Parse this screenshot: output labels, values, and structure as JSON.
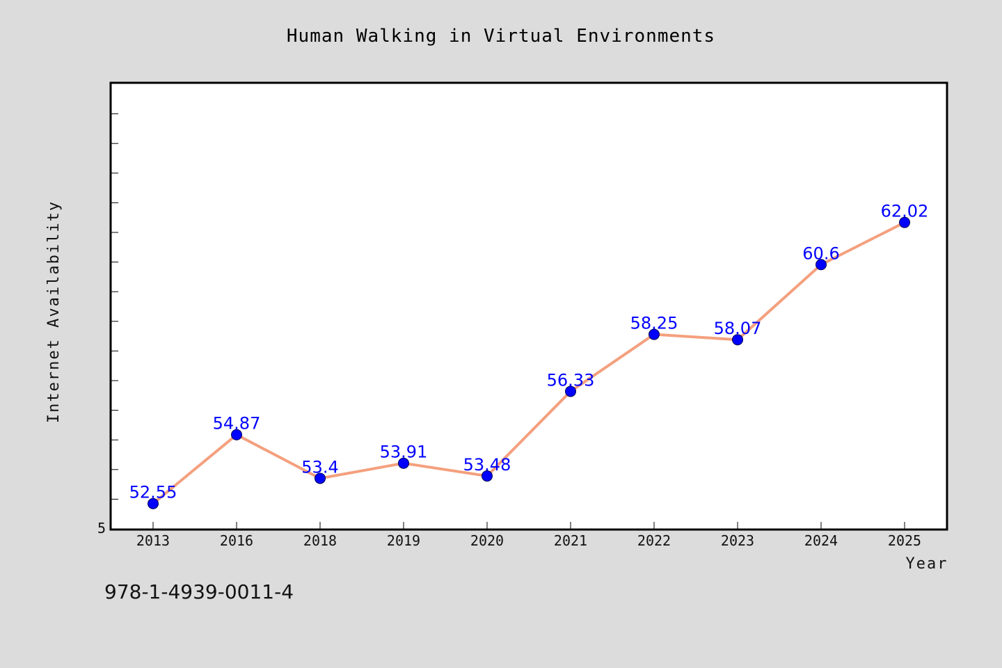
{
  "chart_data": {
    "type": "line",
    "title": "Human Walking in Virtual Environments",
    "xlabel": "Year",
    "ylabel": "Internet Availability",
    "categories": [
      "2013",
      "2016",
      "2018",
      "2019",
      "2020",
      "2021",
      "2022",
      "2023",
      "2024",
      "2025"
    ],
    "series": [
      {
        "values": [
          52.55,
          54.87,
          53.4,
          53.91,
          53.48,
          56.33,
          58.25,
          58.07,
          60.6,
          62.02
        ]
      }
    ],
    "data_labels": [
      "52.55",
      "54.87",
      "53.4",
      "53.91",
      "53.48",
      "56.33",
      "58.25",
      "58.07",
      "60.6",
      "62.02"
    ],
    "y_tick_labels": [
      "5"
    ],
    "ylim": [
      51.7,
      66.7
    ],
    "grid": false,
    "legend": "none",
    "colors": {
      "line": "#f4a07e",
      "marker": "#0000ff",
      "data_label": "#0000ff",
      "background": "#dcdcdc",
      "plot_background": "#ffffff"
    }
  },
  "footer": {
    "isbn": "978-1-4939-0011-4"
  }
}
